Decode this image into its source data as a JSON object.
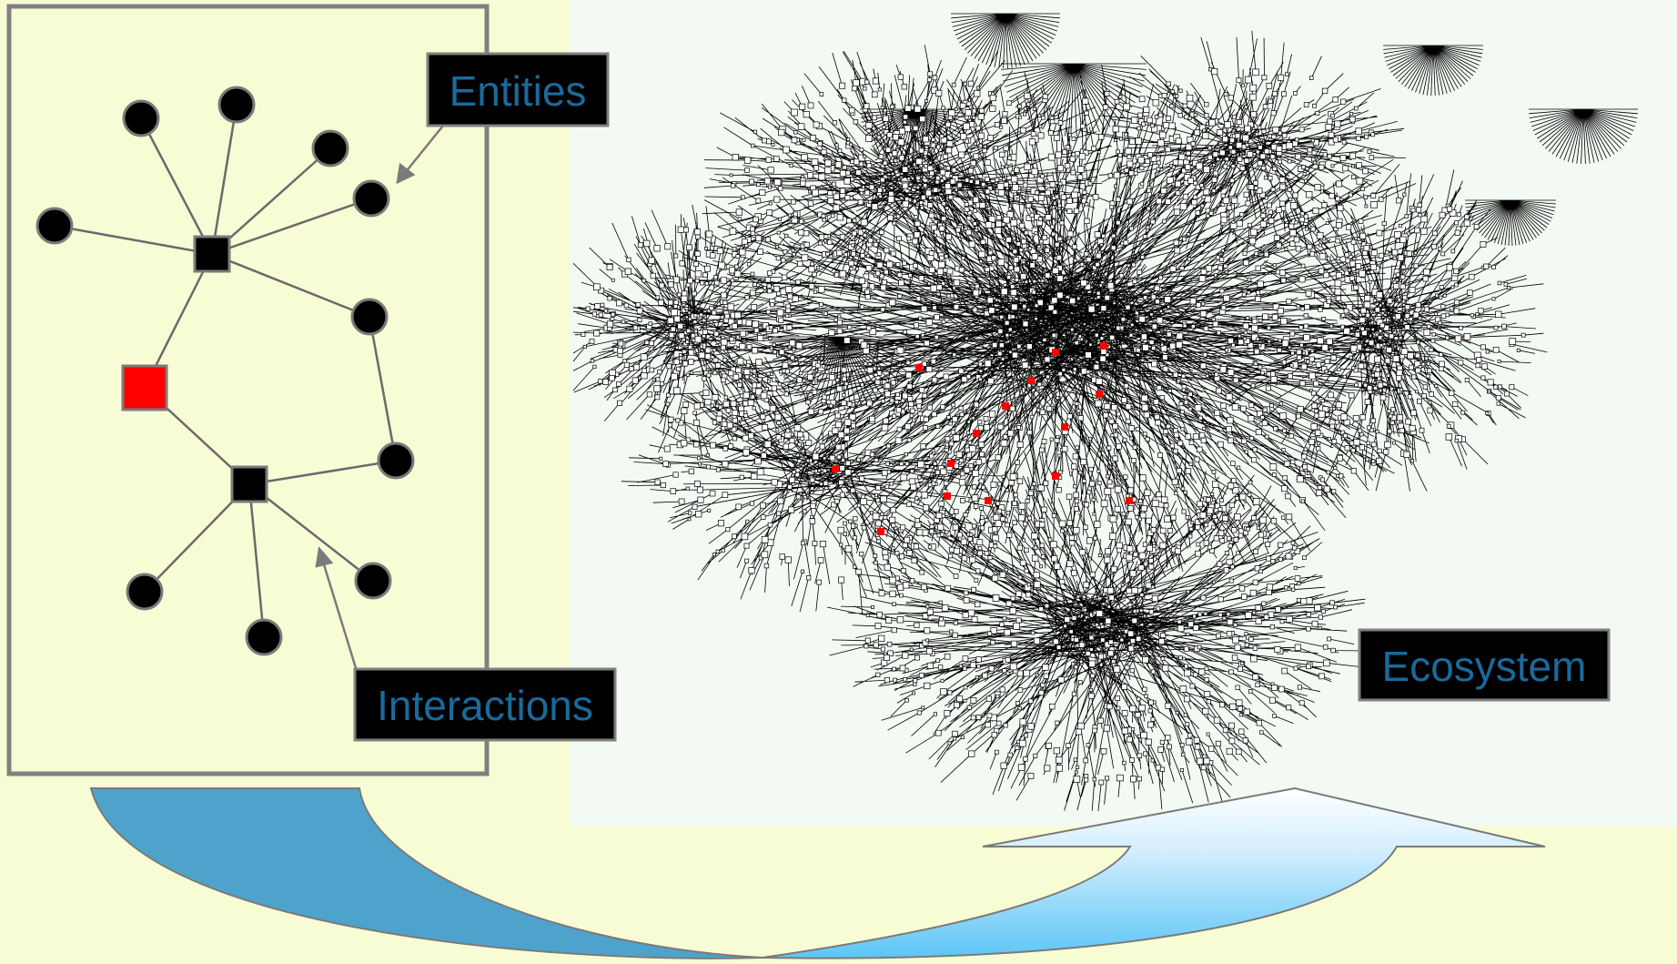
{
  "labels": {
    "entities": "Entities",
    "interactions": "Interactions",
    "ecosystem": "Ecosystem"
  },
  "colors": {
    "background": "#f8fcd4",
    "network_panel": "#f3f9f3",
    "label_box": "#000000",
    "label_text": "#1a6a9a",
    "hub_node": "#000000",
    "highlight_node": "#ff0000",
    "arrow_fill_dark": "#4ea3cc",
    "arrow_fill_light": "#5cc5f5"
  },
  "icons": {
    "entity": "circle-node",
    "hub": "square-node",
    "highlighted": "red-square-node"
  }
}
